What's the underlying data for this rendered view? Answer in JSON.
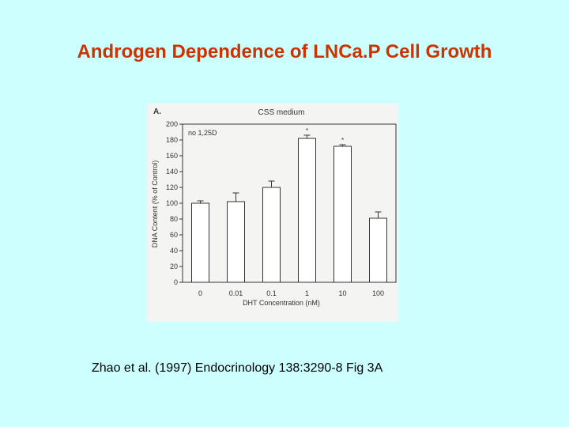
{
  "slide": {
    "title": "Androgen Dependence of LNCa.P Cell Growth",
    "citation": "Zhao et al. (1997) Endocrinology 138:3290-8 Fig 3A"
  },
  "chart_data": {
    "type": "bar",
    "panel_label": "A.",
    "title": "CSS medium",
    "annotation": "no 1,25D",
    "xlabel": "DHT Concentration (nM)",
    "ylabel": "DNA Content (% of Control)",
    "categories": [
      "0",
      "0.01",
      "0.1",
      "1",
      "10",
      "100"
    ],
    "values": [
      100,
      102,
      120,
      182,
      172,
      81
    ],
    "errors": [
      3,
      11,
      8,
      4,
      2,
      8
    ],
    "significance": [
      "",
      "",
      "",
      "*",
      "*",
      ""
    ],
    "ylim": [
      0,
      200
    ],
    "yticks": [
      0,
      20,
      40,
      60,
      80,
      100,
      120,
      140,
      160,
      180,
      200
    ],
    "grid": false,
    "colors": {
      "bar_fill": "#ffffff",
      "bar_stroke": "#333333"
    }
  }
}
